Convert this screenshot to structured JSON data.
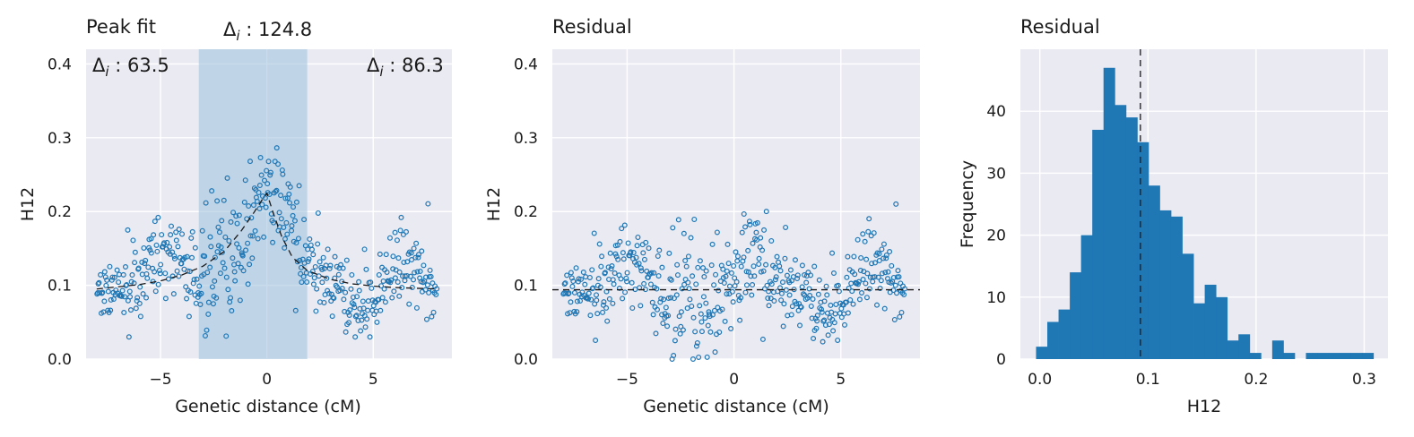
{
  "colors": {
    "panel_bg": "#eaeaf2",
    "grid": "#ffffff",
    "marker": "#1f77b4",
    "band": "#a3c4e0",
    "guide": "#1a1a1a"
  },
  "chart_data": [
    {
      "type": "scatter",
      "title": "Peak fit",
      "xlabel": "Genetic distance (cM)",
      "ylabel": "H12",
      "xlim": [
        -8.5,
        8.7
      ],
      "ylim": [
        0,
        0.42
      ],
      "xticks": [
        -5,
        0,
        5
      ],
      "xtick_labels": [
        "−5",
        "0",
        "5"
      ],
      "yticks": [
        0.0,
        0.1,
        0.2,
        0.3,
        0.4
      ],
      "ytick_labels": [
        "0.0",
        "0.1",
        "0.2",
        "0.3",
        "0.4"
      ],
      "grid": true,
      "shaded_region": [
        -3.2,
        1.9
      ],
      "annotations": [
        "Δi : 63.5",
        "Δi : 124.8",
        "Δi : 86.3"
      ],
      "fit_curve": {
        "x": [
          -8,
          -7,
          -6,
          -5,
          -4,
          -3,
          -2,
          -1.2,
          -0.6,
          -0.2,
          0,
          0.3,
          0.7,
          1.2,
          1.9,
          3,
          4,
          5,
          6,
          7,
          8
        ],
        "y": [
          0.095,
          0.098,
          0.101,
          0.106,
          0.114,
          0.126,
          0.146,
          0.174,
          0.199,
          0.217,
          0.225,
          0.198,
          0.166,
          0.138,
          0.12,
          0.108,
          0.102,
          0.099,
          0.097,
          0.096,
          0.095
        ]
      },
      "points_shown": 480
    },
    {
      "type": "scatter",
      "title": "Residual",
      "xlabel": "Genetic distance (cM)",
      "ylabel": "H12",
      "xlim": [
        -8.5,
        8.7
      ],
      "ylim": [
        0,
        0.42
      ],
      "xticks": [
        -5,
        0,
        5
      ],
      "xtick_labels": [
        "−5",
        "0",
        "5"
      ],
      "yticks": [
        0.0,
        0.1,
        0.2,
        0.3,
        0.4
      ],
      "ytick_labels": [
        "0.0",
        "0.1",
        "0.2",
        "0.3",
        "0.4"
      ],
      "grid": true,
      "reference_line": 0.094,
      "points_shown": 480
    },
    {
      "type": "histogram",
      "title": "Residual",
      "xlabel": "H12",
      "ylabel": "Frequency",
      "xlim": [
        -0.018,
        0.322
      ],
      "ylim": [
        0,
        50
      ],
      "xticks": [
        0.0,
        0.1,
        0.2,
        0.3
      ],
      "xtick_labels": [
        "0.0",
        "0.1",
        "0.2",
        "0.3"
      ],
      "yticks": [
        0,
        10,
        20,
        30,
        40
      ],
      "ytick_labels": [
        "0",
        "10",
        "20",
        "30",
        "40"
      ],
      "grid": true,
      "reference_line": 0.093,
      "bin_start": -0.0035,
      "bin_width": 0.0104,
      "counts": [
        2,
        6,
        8,
        14,
        20,
        37,
        47,
        41,
        39,
        35,
        28,
        24,
        23,
        17,
        9,
        12,
        10,
        3,
        4,
        1,
        0,
        3,
        1,
        0,
        1,
        1,
        1,
        1,
        1,
        1
      ]
    }
  ]
}
